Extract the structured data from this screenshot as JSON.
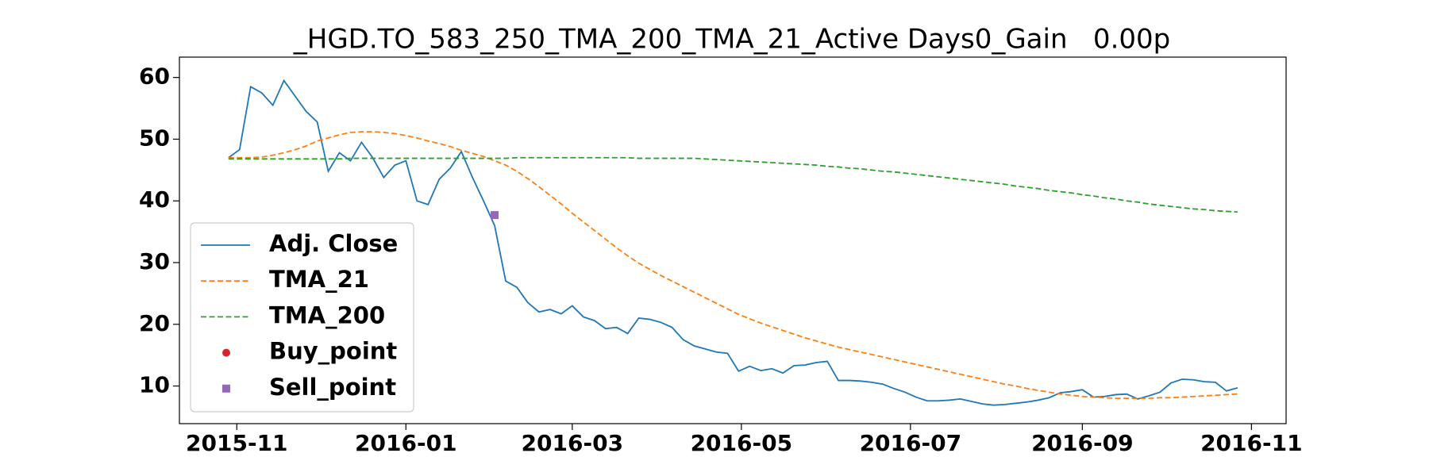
{
  "chart_data": {
    "type": "line",
    "title": "_HGD.TO_583_250_TMA_200_TMA_21_Active Days0_Gain   0.00p",
    "x": [
      16737,
      16741,
      16745,
      16749,
      16753,
      16757,
      16761,
      16765,
      16769,
      16773,
      16777,
      16781,
      16785,
      16789,
      16793,
      16797,
      16801,
      16805,
      16809,
      16813,
      16817,
      16821,
      16825,
      16829,
      16833,
      16837,
      16841,
      16845,
      16849,
      16853,
      16857,
      16861,
      16865,
      16869,
      16873,
      16877,
      16881,
      16885,
      16889,
      16893,
      16897,
      16901,
      16905,
      16909,
      16913,
      16917,
      16921,
      16925,
      16929,
      16933,
      16937,
      16941,
      16945,
      16949,
      16953,
      16957,
      16961,
      16965,
      16969,
      16973,
      16977,
      16981,
      16985,
      16989,
      16993,
      16997,
      17001,
      17005,
      17009,
      17013,
      17017,
      17021,
      17025,
      17029,
      17033,
      17037,
      17041,
      17045,
      17049,
      17053,
      17057,
      17061,
      17065,
      17069,
      17073,
      17077,
      17081,
      17085,
      17089,
      17093,
      17097,
      17101
    ],
    "series": [
      {
        "name": "Adj. Close",
        "color": "#1f77b4",
        "style": "solid",
        "values": [
          47,
          48.3,
          58.5,
          57.5,
          55.5,
          59.5,
          57,
          54.5,
          52.8,
          44.8,
          47.8,
          46.5,
          49.5,
          47,
          43.8,
          45.8,
          46.5,
          40,
          39.4,
          43.5,
          45.3,
          48,
          43.8,
          40,
          36,
          27,
          26,
          23.5,
          22,
          22.4,
          21.7,
          23,
          21.2,
          20.6,
          19.3,
          19.5,
          18.5,
          21,
          20.8,
          20.3,
          19.5,
          17.5,
          16.5,
          16,
          15.5,
          15.3,
          12.4,
          13.2,
          12.5,
          12.8,
          12.1,
          13.3,
          13.4,
          13.8,
          14,
          10.9,
          10.9,
          10.8,
          10.6,
          10.3,
          9.6,
          9,
          8.2,
          7.6,
          7.6,
          7.7,
          7.9,
          7.5,
          7.1,
          6.9,
          7,
          7.2,
          7.4,
          7.7,
          8.1,
          8.9,
          9.1,
          9.4,
          8.2,
          8.3,
          8.6,
          8.7,
          7.9,
          8.4,
          9,
          10.5,
          11.1,
          11,
          10.7,
          10.6,
          9.2,
          9.7
        ]
      },
      {
        "name": "TMA_21",
        "color": "#ff7f0e",
        "style": "dashed",
        "values": [
          47,
          47,
          47,
          47.1,
          47.4,
          47.8,
          48.3,
          48.9,
          49.7,
          50.2,
          50.7,
          51.1,
          51.2,
          51.2,
          51.1,
          50.9,
          50.6,
          50.2,
          49.7,
          49.3,
          48.8,
          48.2,
          47.7,
          47.2,
          46.5,
          45.8,
          44.8,
          43.6,
          42.3,
          40.9,
          39.5,
          38,
          36.6,
          35.2,
          33.8,
          32.4,
          31.1,
          29.9,
          28.9,
          27.9,
          27,
          26.1,
          25.2,
          24.3,
          23.4,
          22.5,
          21.6,
          20.9,
          20.2,
          19.6,
          19,
          18.4,
          17.8,
          17.3,
          16.8,
          16.3,
          15.9,
          15.5,
          15.1,
          14.7,
          14.3,
          13.9,
          13.5,
          13.1,
          12.7,
          12.3,
          11.9,
          11.5,
          11.1,
          10.7,
          10.3,
          10,
          9.6,
          9.3,
          9,
          8.7,
          8.5,
          8.3,
          8.2,
          8.1,
          8,
          8,
          8,
          8,
          8.1,
          8.1,
          8.2,
          8.3,
          8.4,
          8.5,
          8.6,
          8.7
        ]
      },
      {
        "name": "TMA_200",
        "color": "#2ca02c",
        "style": "dashed",
        "values": [
          46.8,
          46.8,
          46.8,
          46.8,
          46.8,
          46.8,
          46.8,
          46.8,
          46.8,
          46.8,
          46.8,
          46.9,
          46.9,
          46.9,
          46.9,
          46.9,
          46.9,
          46.9,
          46.9,
          46.9,
          46.9,
          46.9,
          46.9,
          46.9,
          46.9,
          46.9,
          47,
          47,
          47,
          47,
          47,
          47,
          47,
          47,
          47,
          47,
          47,
          46.9,
          46.9,
          46.9,
          46.9,
          46.9,
          46.9,
          46.8,
          46.7,
          46.6,
          46.5,
          46.4,
          46.3,
          46.2,
          46.1,
          46,
          45.9,
          45.8,
          45.6,
          45.5,
          45.3,
          45.2,
          45,
          44.8,
          44.7,
          44.5,
          44.3,
          44.1,
          43.9,
          43.7,
          43.5,
          43.3,
          43.1,
          42.9,
          42.7,
          42.4,
          42.2,
          42,
          41.7,
          41.5,
          41.3,
          41,
          40.8,
          40.5,
          40.3,
          40,
          39.8,
          39.5,
          39.3,
          39.1,
          38.9,
          38.7,
          38.6,
          38.4,
          38.3,
          38.2
        ]
      },
      {
        "name": "Buy_point",
        "color": "#d62728",
        "style": "marker",
        "marker": "circle",
        "x": [],
        "values": []
      },
      {
        "name": "Sell_point",
        "color": "#9467bd",
        "style": "marker",
        "marker": "square",
        "x": [
          16833
        ],
        "values": [
          37.7
        ]
      }
    ],
    "xlim": [
      16719.3,
      17118.5
    ],
    "xticks": [
      {
        "value": 16740,
        "label": "2015-11"
      },
      {
        "value": 16801,
        "label": "2016-01"
      },
      {
        "value": 16861,
        "label": "2016-03"
      },
      {
        "value": 16922,
        "label": "2016-05"
      },
      {
        "value": 16983,
        "label": "2016-07"
      },
      {
        "value": 17045,
        "label": "2016-09"
      },
      {
        "value": 17106,
        "label": "2016-11"
      }
    ],
    "ylim": [
      3.9,
      63.3
    ],
    "yticks": [
      10,
      20,
      30,
      40,
      50,
      60
    ],
    "grid": false,
    "legend": "center left"
  }
}
